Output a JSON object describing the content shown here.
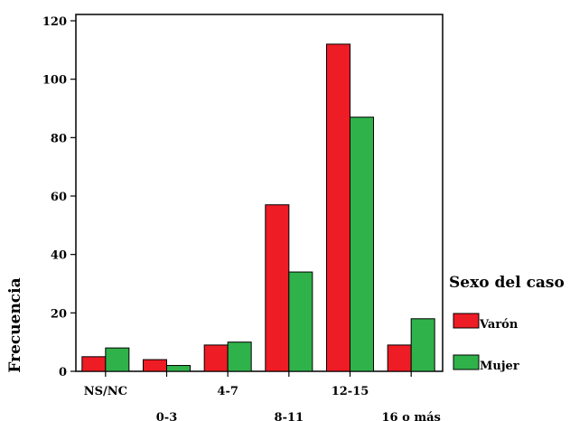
{
  "chart_data": {
    "type": "bar",
    "ylabel": "Frecuencia",
    "xlabel": "",
    "ylim": [
      0,
      120
    ],
    "yticks": [
      0,
      20,
      40,
      60,
      80,
      100,
      120
    ],
    "grid": false,
    "categories": [
      "NS/NC",
      "0-3",
      "4-7",
      "8-11",
      "12-15",
      "16 o más"
    ],
    "series": [
      {
        "name": "Varón",
        "color": "#ee1c25",
        "values": [
          5,
          4,
          9,
          57,
          112,
          9
        ]
      },
      {
        "name": "Mujer",
        "color": "#2fb24a",
        "values": [
          8,
          2,
          10,
          34,
          87,
          18
        ]
      }
    ],
    "legend": {
      "title": "Sexo del caso",
      "placement": "right"
    }
  }
}
